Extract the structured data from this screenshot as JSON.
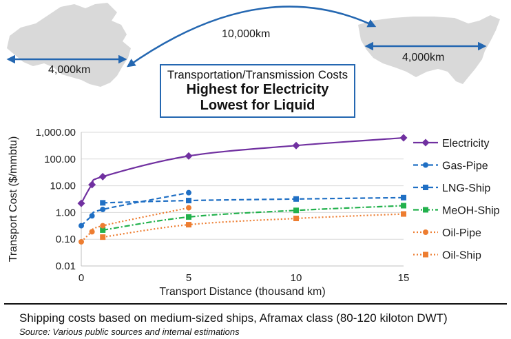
{
  "map": {
    "china_span": "4,000km",
    "usa_span": "4,000km",
    "ocean_span": "10,000km"
  },
  "title": {
    "subtitle": "Transportation/Transmission Costs",
    "line1": "Highest for Electricity",
    "line2": "Lowest for Liquid"
  },
  "footnote": "Shipping costs based on medium-sized ships, Aframax class (80-120 kiloton DWT)",
  "source": "Source: Various public sources and internal estimations",
  "colors": {
    "purple": "#7030a0",
    "blue": "#1f6fc4",
    "green": "#22b14c",
    "orange": "#ed7d31",
    "map": "#d9d9d9",
    "arrow": "#2467b1"
  },
  "chart_data": {
    "type": "line",
    "xlabel": "Transport Distance (thousand km)",
    "ylabel": "Transport Cost ($/mmbtu)",
    "xlim": [
      0,
      15
    ],
    "ylim": [
      0.01,
      1000
    ],
    "yscale": "log",
    "x_ticks": [
      0,
      5,
      10,
      15
    ],
    "y_ticks": [
      0.01,
      0.1,
      1,
      10,
      100,
      1000
    ],
    "y_tick_labels": [
      "0.01",
      "0.10",
      "1.00",
      "10.00",
      "100.00",
      "1,000.00"
    ],
    "legend_position": "right",
    "series": [
      {
        "name": "Electricity",
        "color": "#7030a0",
        "dash": "solid",
        "marker": "diamond",
        "x": [
          0,
          0.5,
          1,
          5,
          10,
          15
        ],
        "y": [
          2.2,
          11,
          22,
          130,
          320,
          620
        ]
      },
      {
        "name": "Gas-Pipe",
        "color": "#1f6fc4",
        "dash": "dashed",
        "marker": "circle",
        "x": [
          0,
          0.5,
          1,
          5
        ],
        "y": [
          0.32,
          0.75,
          1.3,
          5.5
        ]
      },
      {
        "name": "LNG-Ship",
        "color": "#1f6fc4",
        "dash": "dashed",
        "marker": "square",
        "x": [
          1,
          5,
          10,
          15
        ],
        "y": [
          2.3,
          2.8,
          3.2,
          3.6
        ]
      },
      {
        "name": "MeOH-Ship",
        "color": "#22b14c",
        "dash": "dashdot",
        "marker": "square",
        "x": [
          1,
          5,
          10,
          15
        ],
        "y": [
          0.22,
          0.68,
          1.2,
          1.8
        ]
      },
      {
        "name": "Oil-Pipe",
        "color": "#ed7d31",
        "dash": "dotted",
        "marker": "circle",
        "x": [
          0,
          0.5,
          1,
          5
        ],
        "y": [
          0.08,
          0.19,
          0.32,
          1.5
        ]
      },
      {
        "name": "Oil-Ship",
        "color": "#ed7d31",
        "dash": "dotted",
        "marker": "square",
        "x": [
          1,
          5,
          10,
          15
        ],
        "y": [
          0.12,
          0.35,
          0.6,
          0.88
        ]
      }
    ]
  }
}
